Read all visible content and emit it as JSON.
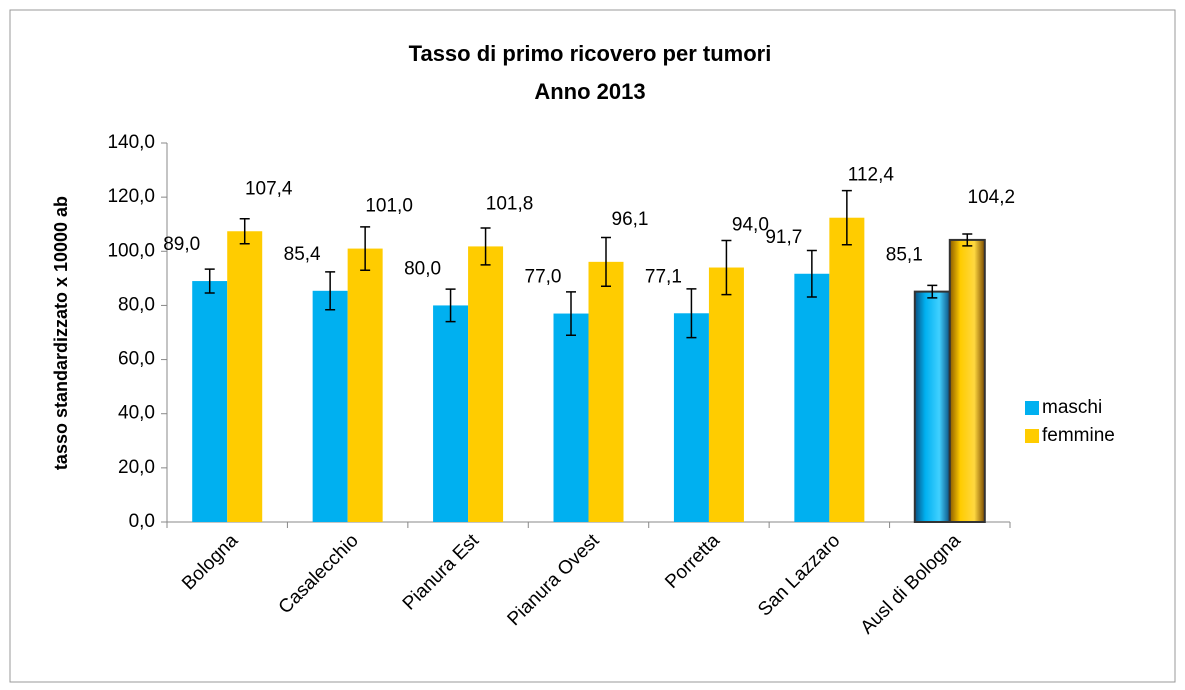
{
  "chart_data": {
    "type": "bar",
    "title": "Tasso di primo ricovero per tumori",
    "subtitle": "Anno 2013",
    "y_label": "tasso standardizzato x 10000 ab",
    "categories": [
      "Bologna",
      "Casalecchio",
      "Pianura Est",
      "Pianura Ovest",
      "Porretta",
      "San Lazzaro",
      "Ausl di Bologna"
    ],
    "series": [
      {
        "name": "maschi",
        "color": "#00b0f0",
        "values": [
          89.0,
          85.4,
          80.0,
          77.0,
          77.1,
          91.7,
          85.1
        ],
        "value_labels": [
          "89,0",
          "85,4",
          "80,0",
          "77,0",
          "77,1",
          "91,7",
          "85,1"
        ],
        "errors": [
          4.4,
          7.0,
          6.0,
          8.0,
          9.0,
          8.6,
          2.3
        ]
      },
      {
        "name": "femmine",
        "color": "#ffcc00",
        "values": [
          107.4,
          101.0,
          101.8,
          96.1,
          94.0,
          112.4,
          104.2
        ],
        "value_labels": [
          "107,4",
          "101,0",
          "101,8",
          "96,1",
          "94,0",
          "112,4",
          "104,2"
        ],
        "errors": [
          4.6,
          8.0,
          6.8,
          9.0,
          10.0,
          10.0,
          2.2
        ]
      }
    ],
    "highlight_index": 6,
    "ylim": [
      0,
      140
    ],
    "yticks": [
      {
        "value": 0,
        "label": "0,0"
      },
      {
        "value": 20,
        "label": "20,0"
      },
      {
        "value": 40,
        "label": "40,0"
      },
      {
        "value": 60,
        "label": "60,0"
      },
      {
        "value": 80,
        "label": "80,0"
      },
      {
        "value": 100,
        "label": "100,0"
      },
      {
        "value": 120,
        "label": "120,0"
      },
      {
        "value": 140,
        "label": "140,0"
      }
    ],
    "grid": false,
    "legend": "right"
  }
}
